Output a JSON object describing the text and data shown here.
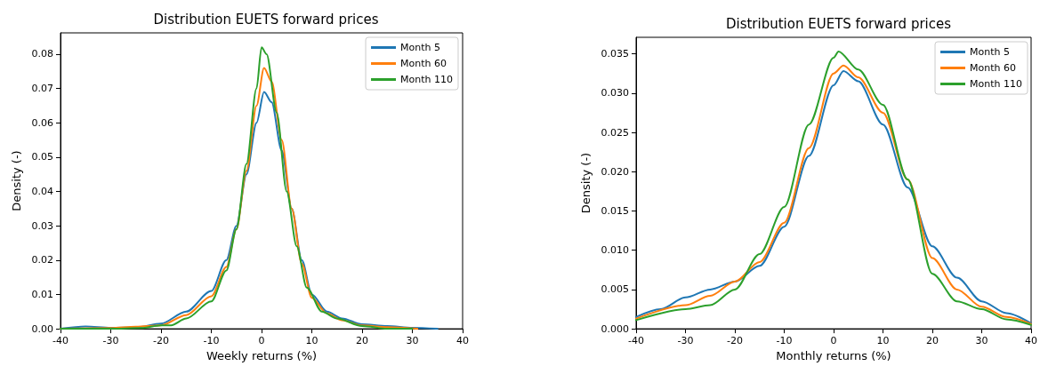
{
  "chart_data": [
    {
      "type": "line",
      "title": "Distribution EUETS forward prices",
      "xlabel": "Weekly returns (%)",
      "ylabel": "Density (-)",
      "xlim": [
        -40,
        40
      ],
      "xticks": [
        -40,
        -30,
        -20,
        -10,
        0,
        10,
        20,
        30,
        40
      ],
      "ylim": [
        0,
        0.0862
      ],
      "yticks": [
        {
          "value": 0,
          "label": "0.00"
        },
        {
          "value": 0.01,
          "label": "0.01"
        },
        {
          "value": 0.02,
          "label": "0.02"
        },
        {
          "value": 0.03,
          "label": "0.03"
        },
        {
          "value": 0.04,
          "label": "0.04"
        },
        {
          "value": 0.05,
          "label": "0.05"
        },
        {
          "value": 0.06,
          "label": "0.06"
        },
        {
          "value": 0.07,
          "label": "0.07"
        },
        {
          "value": 0.08,
          "label": "0.08"
        }
      ],
      "grid": false,
      "legend": "top right",
      "marker": "none",
      "line_style": "solid",
      "series": [
        {
          "name": "Month 5",
          "color": "#1f77b4",
          "x": [
            -40,
            -35,
            -30,
            -25,
            -20,
            -15,
            -10,
            -7,
            -5,
            -3,
            -1,
            0.5,
            2,
            4,
            6,
            8,
            10,
            13,
            16,
            20,
            25,
            30,
            35
          ],
          "values": [
            0,
            0.0007,
            0.0003,
            0.0004,
            0.0015,
            0.005,
            0.011,
            0.02,
            0.03,
            0.045,
            0.06,
            0.069,
            0.066,
            0.052,
            0.035,
            0.02,
            0.01,
            0.005,
            0.003,
            0.0013,
            0.0008,
            0.0003,
            0
          ]
        },
        {
          "name": "Month 60",
          "color": "#ff7f0e",
          "x": [
            -40,
            -30,
            -25,
            -20,
            -15,
            -10,
            -7,
            -5,
            -3,
            -1,
            0.5,
            2,
            4,
            6,
            8,
            10,
            13,
            16,
            20,
            25,
            31
          ],
          "values": [
            0,
            0.0002,
            0.0006,
            0.001,
            0.004,
            0.0095,
            0.018,
            0.029,
            0.046,
            0.065,
            0.076,
            0.072,
            0.055,
            0.035,
            0.019,
            0.009,
            0.0045,
            0.0025,
            0.001,
            0.0005,
            0
          ]
        },
        {
          "name": "Month 110",
          "color": "#2ca02c",
          "x": [
            -40,
            -30,
            -24,
            -20,
            -18,
            -15,
            -10,
            -7,
            -5,
            -3,
            -1,
            0,
            1,
            3,
            5,
            7,
            9,
            12,
            15,
            20,
            25,
            30
          ],
          "values": [
            0,
            0,
            0.0002,
            0.001,
            0.001,
            0.003,
            0.008,
            0.017,
            0.029,
            0.048,
            0.07,
            0.082,
            0.08,
            0.063,
            0.04,
            0.024,
            0.012,
            0.005,
            0.003,
            0.0008,
            0,
            0
          ]
        }
      ]
    },
    {
      "type": "line",
      "title": "Distribution EUETS forward prices",
      "xlabel": "Monthly returns (%)",
      "ylabel": "Density (-)",
      "xlim": [
        -40,
        40
      ],
      "xticks": [
        -40,
        -30,
        -20,
        -10,
        0,
        10,
        20,
        30,
        40
      ],
      "ylim": [
        0,
        0.0371
      ],
      "yticks": [
        {
          "value": 0,
          "label": "0.000"
        },
        {
          "value": 0.005,
          "label": "0.005"
        },
        {
          "value": 0.01,
          "label": "0.010"
        },
        {
          "value": 0.015,
          "label": "0.015"
        },
        {
          "value": 0.02,
          "label": "0.020"
        },
        {
          "value": 0.025,
          "label": "0.025"
        },
        {
          "value": 0.03,
          "label": "0.030"
        },
        {
          "value": 0.035,
          "label": "0.035"
        }
      ],
      "grid": false,
      "legend": "top right",
      "marker": "none",
      "line_style": "solid",
      "series": [
        {
          "name": "Month 5",
          "color": "#1f77b4",
          "x": [
            -40,
            -35,
            -30,
            -25,
            -20,
            -15,
            -10,
            -5,
            0,
            2,
            5,
            10,
            15,
            20,
            25,
            30,
            35,
            40
          ],
          "values": [
            0.0015,
            0.0025,
            0.004,
            0.005,
            0.006,
            0.008,
            0.013,
            0.022,
            0.031,
            0.0328,
            0.0315,
            0.026,
            0.018,
            0.0105,
            0.0065,
            0.0035,
            0.002,
            0.0007
          ]
        },
        {
          "name": "Month 60",
          "color": "#ff7f0e",
          "x": [
            -40,
            -30,
            -25,
            -20,
            -15,
            -10,
            -5,
            0,
            2,
            5,
            10,
            15,
            20,
            25,
            30,
            35,
            40
          ],
          "values": [
            0.0013,
            0.003,
            0.0042,
            0.006,
            0.0085,
            0.0135,
            0.023,
            0.0325,
            0.0335,
            0.032,
            0.0275,
            0.019,
            0.009,
            0.005,
            0.0028,
            0.0015,
            0.0006
          ]
        },
        {
          "name": "Month 110",
          "color": "#2ca02c",
          "x": [
            -40,
            -30,
            -25,
            -20,
            -15,
            -10,
            -5,
            0,
            1,
            5,
            10,
            15,
            20,
            25,
            30,
            35,
            40
          ],
          "values": [
            0.0011,
            0.0025,
            0.003,
            0.005,
            0.0095,
            0.0155,
            0.026,
            0.0345,
            0.0353,
            0.033,
            0.0285,
            0.019,
            0.007,
            0.0035,
            0.0025,
            0.0012,
            0.0005
          ]
        }
      ]
    }
  ]
}
